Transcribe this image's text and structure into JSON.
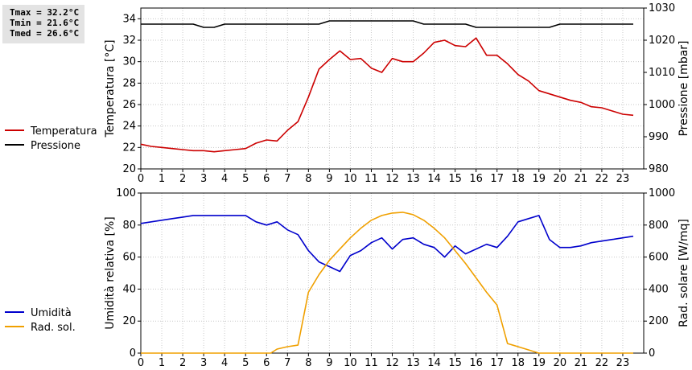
{
  "stats": {
    "tmax": "Tmax = 32.2°C",
    "tmin": "Tmin = 21.6°C",
    "tmed": "Tmed = 26.6°C"
  },
  "chart_data": [
    {
      "type": "line",
      "x_ticks": [
        "0",
        "1",
        "2",
        "3",
        "4",
        "5",
        "6",
        "7",
        "8",
        "9",
        "10",
        "11",
        "12",
        "13",
        "14",
        "15",
        "16",
        "17",
        "18",
        "19",
        "20",
        "21",
        "22",
        "23"
      ],
      "xlim": [
        0,
        24
      ],
      "ylabel": "Temperatura [°C]",
      "ylabel_right": "Pressione [mbar]",
      "ylim": [
        20,
        35
      ],
      "y_ticks": [
        "20",
        "22",
        "24",
        "26",
        "28",
        "30",
        "32",
        "34"
      ],
      "ylim_right": [
        980,
        1030
      ],
      "y_ticks_right": [
        "980",
        "990",
        "1000",
        "1010",
        "1020",
        "1030"
      ],
      "grid": true,
      "legend_position": "left",
      "series": [
        {
          "name": "Temperatura",
          "color": "#cc0000",
          "axis": "left",
          "x": [
            0,
            0.5,
            1,
            1.5,
            2,
            2.5,
            3,
            3.5,
            4,
            4.5,
            5,
            5.5,
            6,
            6.5,
            7,
            7.5,
            8,
            8.5,
            9,
            9.5,
            10,
            10.5,
            11,
            11.5,
            12,
            12.5,
            13,
            13.5,
            14,
            14.5,
            15,
            15.5,
            16,
            16.5,
            17,
            17.5,
            18,
            18.5,
            19,
            19.5,
            20,
            20.5,
            21,
            21.5,
            22,
            22.5,
            23,
            23.5
          ],
          "values": [
            22.3,
            22.1,
            22.0,
            21.9,
            21.8,
            21.7,
            21.7,
            21.6,
            21.7,
            21.8,
            21.9,
            22.4,
            22.7,
            22.6,
            23.6,
            24.4,
            26.7,
            29.3,
            30.2,
            31.0,
            30.2,
            30.3,
            29.4,
            29.0,
            30.3,
            30.0,
            30.0,
            30.8,
            31.8,
            32.0,
            31.5,
            31.4,
            32.2,
            30.6,
            30.6,
            29.8,
            28.8,
            28.2,
            27.3,
            27.0,
            26.7,
            26.4,
            26.2,
            25.8,
            25.7,
            25.4,
            25.1,
            25.0
          ]
        },
        {
          "name": "Pressione",
          "color": "#000000",
          "axis": "right",
          "x": [
            0,
            2.5,
            3,
            3.5,
            4,
            8.5,
            9,
            13,
            13.5,
            15.5,
            16,
            19,
            19.5,
            20,
            23.5
          ],
          "values": [
            1025,
            1025,
            1024,
            1024,
            1025,
            1025,
            1026,
            1026,
            1025,
            1025,
            1024,
            1024,
            1024,
            1025,
            1025
          ]
        }
      ]
    },
    {
      "type": "line",
      "x_ticks": [
        "0",
        "1",
        "2",
        "3",
        "4",
        "5",
        "6",
        "7",
        "8",
        "9",
        "10",
        "11",
        "12",
        "13",
        "14",
        "15",
        "16",
        "17",
        "18",
        "19",
        "20",
        "21",
        "22",
        "23"
      ],
      "xlim": [
        0,
        24
      ],
      "ylabel": "Umidità relativa [%]",
      "ylabel_right": "Rad. solare [W/mq]",
      "ylim": [
        0,
        100
      ],
      "y_ticks": [
        "0",
        "20",
        "40",
        "60",
        "80",
        "100"
      ],
      "ylim_right": [
        0,
        1000
      ],
      "y_ticks_right": [
        "0",
        "200",
        "400",
        "600",
        "800",
        "1000"
      ],
      "grid": true,
      "legend_position": "left",
      "series": [
        {
          "name": "Umidità",
          "color": "#0000cc",
          "axis": "left",
          "x": [
            0,
            0.5,
            1,
            1.5,
            2,
            2.5,
            3,
            3.5,
            4,
            4.5,
            5,
            5.5,
            6,
            6.5,
            7,
            7.5,
            8,
            8.5,
            9,
            9.5,
            10,
            10.5,
            11,
            11.5,
            12,
            12.5,
            13,
            13.5,
            14,
            14.5,
            15,
            15.5,
            16,
            16.5,
            17,
            17.5,
            18,
            18.5,
            19,
            19.5,
            20,
            20.5,
            21,
            21.5,
            22,
            22.5,
            23,
            23.5
          ],
          "values": [
            81,
            82,
            83,
            84,
            85,
            86,
            86,
            86,
            86,
            86,
            86,
            82,
            80,
            82,
            77,
            74,
            64,
            57,
            54,
            51,
            61,
            64,
            69,
            72,
            65,
            71,
            72,
            68,
            66,
            60,
            67,
            62,
            65,
            68,
            66,
            73,
            82,
            84,
            86,
            71,
            66,
            66,
            67,
            69,
            70,
            71,
            72,
            73
          ]
        },
        {
          "name": "Rad. sol.",
          "color": "#f0a000",
          "axis": "right",
          "x": [
            0,
            6.2,
            6.5,
            7,
            7.5,
            8,
            8.5,
            9,
            9.5,
            10,
            10.5,
            11,
            11.5,
            12,
            12.5,
            13,
            13.5,
            14,
            14.5,
            15,
            15.5,
            16,
            16.5,
            17,
            17.5,
            18,
            18.5,
            19,
            23.5
          ],
          "values": [
            0,
            0,
            25,
            40,
            50,
            380,
            490,
            580,
            650,
            720,
            780,
            830,
            860,
            875,
            880,
            865,
            830,
            780,
            720,
            640,
            560,
            470,
            380,
            300,
            60,
            40,
            20,
            0,
            0
          ]
        }
      ]
    }
  ]
}
